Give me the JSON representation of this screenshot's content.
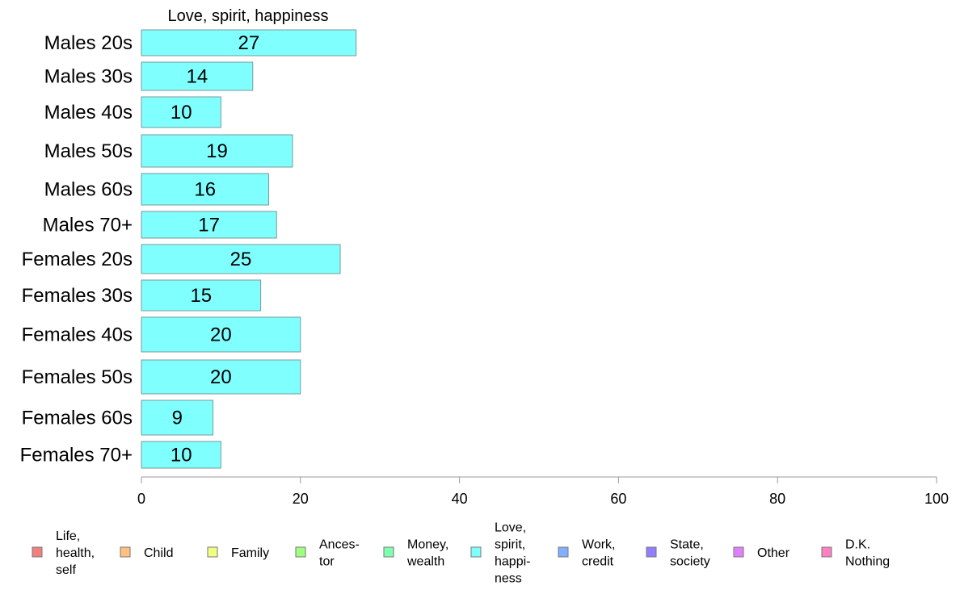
{
  "chart_data": {
    "type": "bar",
    "orientation": "horizontal",
    "title": "Love, spirit, happiness",
    "categories": [
      "Males 20s",
      "Males 30s",
      "Males 40s",
      "Males 50s",
      "Males 60s",
      "Males 70+",
      "Females 20s",
      "Females 30s",
      "Females 40s",
      "Females 50s",
      "Females 60s",
      "Females 70+"
    ],
    "values": [
      27,
      14,
      10,
      19,
      16,
      17,
      25,
      15,
      20,
      20,
      9,
      10
    ],
    "xlim": [
      0,
      100
    ],
    "xticks": [
      0,
      20,
      40,
      60,
      80,
      100
    ],
    "grid": false,
    "bar_color": "#80ffff",
    "legend_position": "bottom",
    "legend": [
      {
        "label": "Life, health, self",
        "lines": [
          "Life,",
          "health,",
          "self"
        ],
        "color": "#f08080"
      },
      {
        "label": "Child",
        "lines": [
          "Child"
        ],
        "color": "#ffc080"
      },
      {
        "label": "Family",
        "lines": [
          "Family"
        ],
        "color": "#f0ff80"
      },
      {
        "label": "Ances-tor",
        "lines": [
          "Ances-",
          "tor"
        ],
        "color": "#a0ff80"
      },
      {
        "label": "Money, wealth",
        "lines": [
          "Money,",
          "wealth"
        ],
        "color": "#80ffb0"
      },
      {
        "label": "Love, spirit, happi-ness",
        "lines": [
          "Love,",
          "spirit,",
          "happi-",
          "ness"
        ],
        "color": "#80ffff"
      },
      {
        "label": "Work, credit",
        "lines": [
          "Work,",
          "credit"
        ],
        "color": "#80b0ff"
      },
      {
        "label": "State, society",
        "lines": [
          "State,",
          "society"
        ],
        "color": "#9080ff"
      },
      {
        "label": "Other",
        "lines": [
          "Other"
        ],
        "color": "#e080ff"
      },
      {
        "label": "D.K. Nothing",
        "lines": [
          "D.K.",
          "Nothing"
        ],
        "color": "#ff80c0"
      }
    ]
  }
}
